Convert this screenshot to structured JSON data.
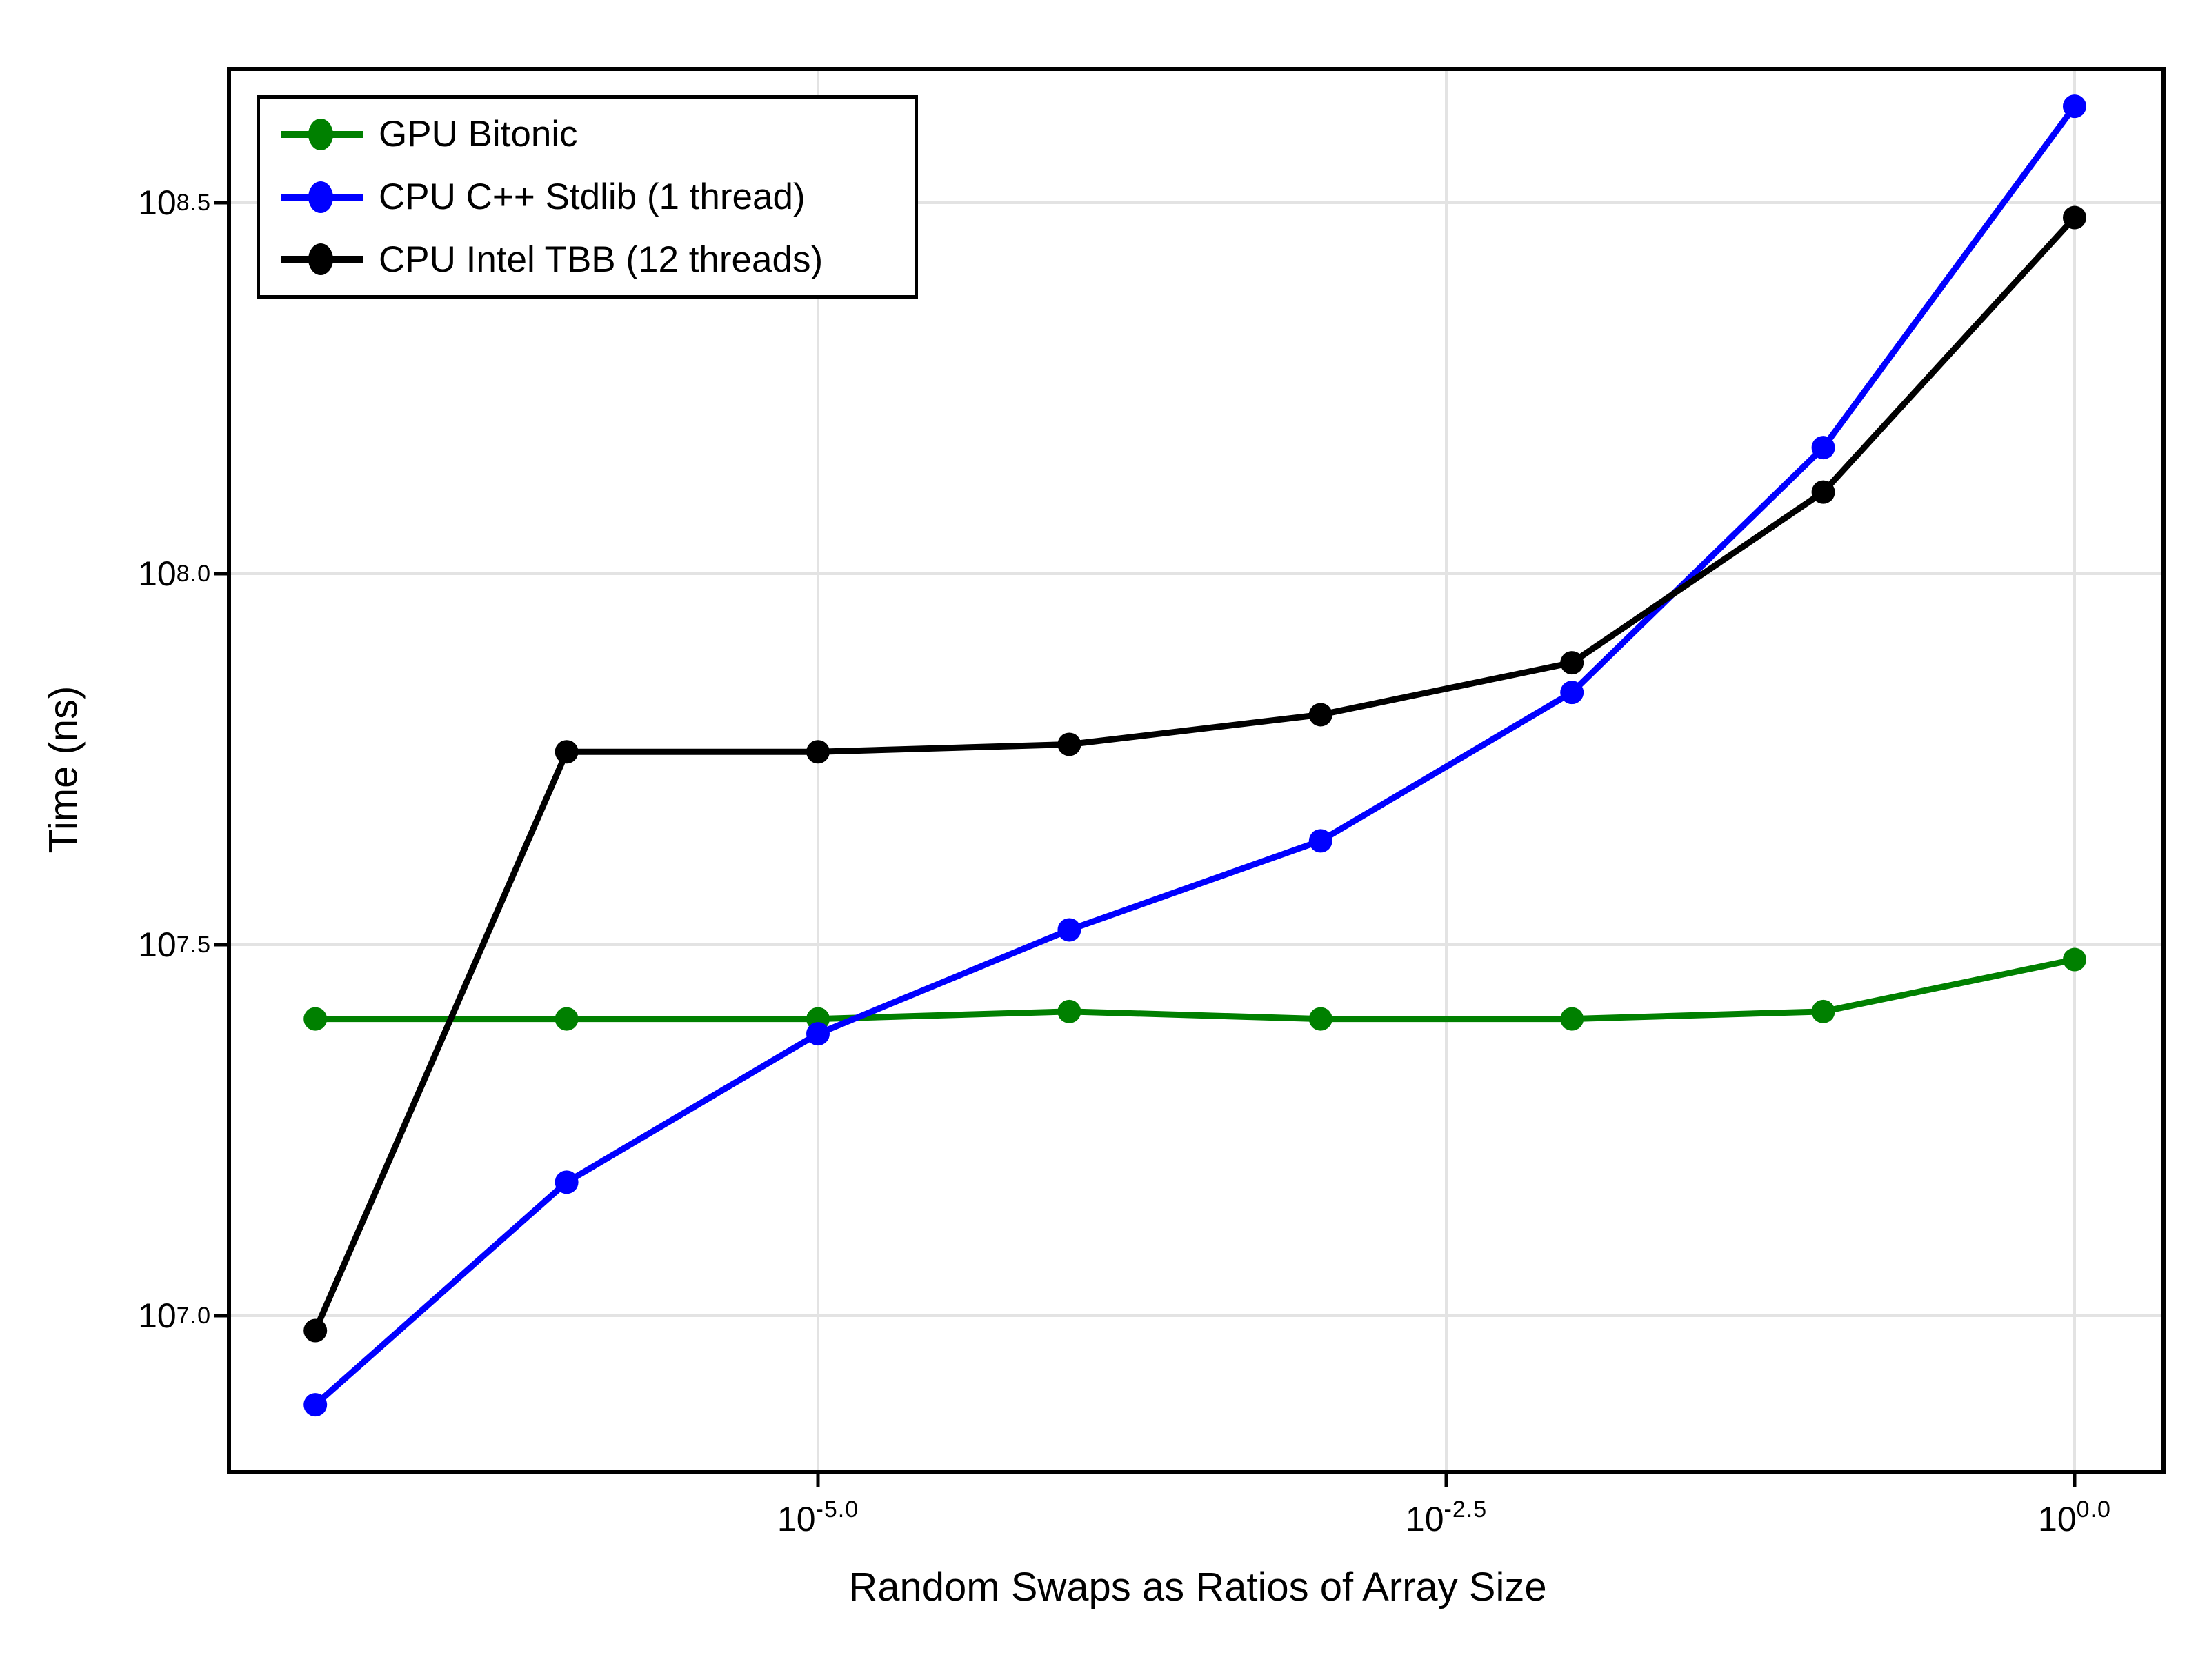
{
  "figure": {
    "background": "#ffffff",
    "frame_color": "#000000",
    "grid_color": "#e3e3e3",
    "tick_color": "#000000"
  },
  "chart_data": {
    "type": "line",
    "title": "",
    "xlabel": "Random Swaps as Ratios of Array Size",
    "ylabel": "Time (ns)",
    "x_scale": "log10",
    "y_scale": "log10",
    "grid": true,
    "legend_position": "top-left",
    "x_log10": [
      -7,
      -6,
      -5,
      -4,
      -3,
      -2,
      -1,
      0
    ],
    "xlim_log10": [
      -7.35,
      0.35
    ],
    "ylim_log10": [
      6.79,
      8.68
    ],
    "x_ticks": [
      {
        "base": "10",
        "exp": "-5.0",
        "log10": -5.0
      },
      {
        "base": "10",
        "exp": "-2.5",
        "log10": -2.5
      },
      {
        "base": "10",
        "exp": "0.0",
        "log10": 0.0
      }
    ],
    "y_ticks": [
      {
        "base": "10",
        "exp": "7.0",
        "log10": 7.0
      },
      {
        "base": "10",
        "exp": "7.5",
        "log10": 7.5
      },
      {
        "base": "10",
        "exp": "8.0",
        "log10": 8.0
      },
      {
        "base": "10",
        "exp": "8.5",
        "log10": 8.5
      }
    ],
    "series": [
      {
        "name": "GPU Bitonic",
        "color": "#008000",
        "marker": "circle",
        "y_log10_ns": [
          7.4,
          7.4,
          7.4,
          7.41,
          7.4,
          7.4,
          7.41,
          7.48
        ],
        "y_ns_approx": [
          25100000,
          25100000,
          25100000,
          25700000,
          25100000,
          25100000,
          25700000,
          30200000
        ]
      },
      {
        "name": "CPU C++ Stdlib (1 thread)",
        "color": "#0000ff",
        "marker": "circle",
        "y_log10_ns": [
          6.88,
          7.18,
          7.38,
          7.52,
          7.64,
          7.84,
          8.17,
          8.63
        ],
        "y_ns_approx": [
          7590000,
          15100000,
          24000000,
          33100000,
          43700000,
          69200000,
          148000000,
          427000000
        ]
      },
      {
        "name": "CPU Intel TBB (12 threads)",
        "color": "#000000",
        "marker": "circle",
        "y_log10_ns": [
          6.98,
          7.76,
          7.76,
          7.77,
          7.81,
          7.88,
          8.11,
          8.48
        ],
        "y_ns_approx": [
          9550000,
          57500000,
          57500000,
          58900000,
          64600000,
          75900000,
          129000000,
          302000000
        ]
      }
    ]
  }
}
